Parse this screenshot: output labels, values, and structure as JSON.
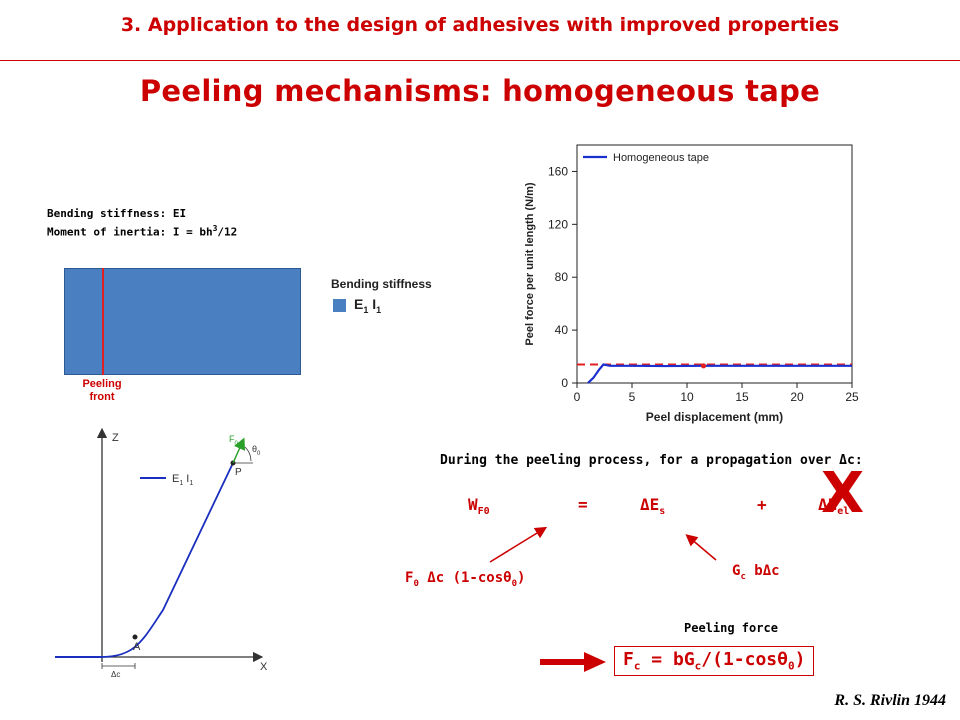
{
  "header": {
    "text": "3. Application to the design of adhesives with improved properties"
  },
  "title": "Peeling mechanisms: homogeneous tape",
  "notes": {
    "bending": "Bending stiffness: EI",
    "inertia_prefix": "Moment of inertia: I = bh",
    "inertia_sup": "3",
    "inertia_suffix": "/12"
  },
  "tape_panel": {
    "legend_title": "Bending stiffness",
    "legend_entry_E": "E",
    "legend_entry_E_sub": "1",
    "legend_entry_I": "I",
    "legend_entry_I_sub": "1",
    "peeling_front_line1": "Peeling",
    "peeling_front_line2": "front",
    "tape_color": "#4a7fc1",
    "front_color": "#e02020"
  },
  "geometry_panel": {
    "axis_z": "Z",
    "axis_x": "X",
    "legend_E": "E",
    "legend_E_sub": "1",
    "legend_I": "I",
    "legend_I_sub": "1",
    "label_P": "P",
    "label_A": "A",
    "label_dc": "Δc",
    "force_F": "F",
    "force_F_sub": "0",
    "angle": "θ",
    "angle_sub": "0",
    "curve_color": "#1a2fbf",
    "force_color": "#2aa02a"
  },
  "chart_data": {
    "type": "line",
    "ylabel": "Peel force per unit length (N/m)",
    "xlabel": "Peel displacement (mm)",
    "xlim": [
      0,
      25
    ],
    "ylim": [
      0,
      180
    ],
    "xticks": [
      0,
      5,
      10,
      15,
      20,
      25
    ],
    "yticks": [
      0,
      40,
      80,
      120,
      160
    ],
    "legend_placement": "top-left",
    "series": [
      {
        "name": "Homogeneous tape",
        "color": "#1a2fd0",
        "x": [
          1,
          1.5,
          2.0,
          2.4,
          3,
          5,
          8,
          11.5,
          15,
          20,
          25
        ],
        "y": [
          0,
          4,
          10,
          14,
          13,
          13,
          12.8,
          13,
          13,
          13,
          13
        ]
      }
    ],
    "reference_line": {
      "y": 14,
      "x": [
        0,
        25
      ],
      "color": "#e02020"
    },
    "marker": {
      "x": 11.5,
      "y": 13,
      "color": "#e02020"
    }
  },
  "equation": {
    "intro": "During the peeling process, for a propagation over Δc:",
    "W": "W",
    "W_sub": "F0",
    "eq": "=",
    "dE": "ΔE",
    "dE_sub": "s",
    "plus": "+",
    "dEel": "ΔE",
    "dEel_sub": "el",
    "cross": "X",
    "work_label": "F",
    "work_label_sub": "0",
    "work_label_rest": " Δc (1-cosθ",
    "work_label_sub2": "0",
    "work_label_close": ")",
    "surface_label": "G",
    "surface_label_sub": "c",
    "surface_label_rest": " bΔc",
    "force_title": "Peeling force",
    "result": "F",
    "result_sub": "c",
    "result_rest": " = bG",
    "result_sub2": "c",
    "result_rest2": "/(1-cosθ",
    "result_sub3": "0",
    "result_close": ")"
  },
  "citation": "R. S. Rivlin 1944"
}
